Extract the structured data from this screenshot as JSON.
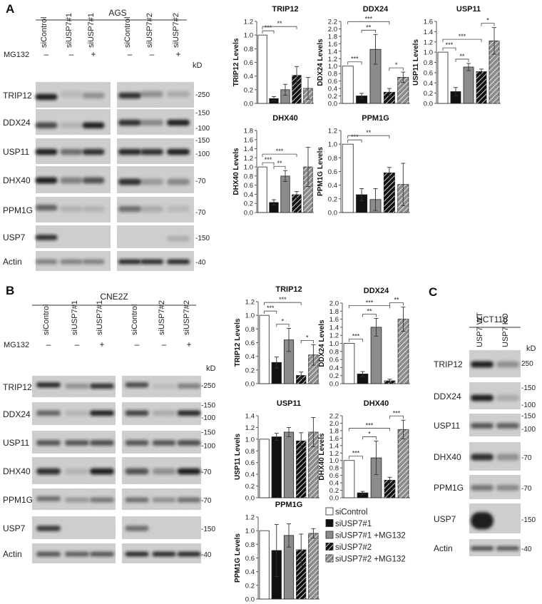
{
  "panels": [
    {
      "label": "A",
      "cell_line": "AGS",
      "kd_unit": "kD",
      "treatment_label": "MG132",
      "groups": [
        {
          "lanes": [
            "siControl",
            "siUSP7#1",
            "siUSP7#1"
          ],
          "mg132": [
            "–",
            "–",
            "+"
          ]
        },
        {
          "lanes": [
            "siControl",
            "siUSP7#2",
            "siUSP7#2"
          ],
          "mg132": [
            "–",
            "–",
            "+"
          ]
        }
      ],
      "proteins": [
        "TRIP12",
        "DDX24",
        "USP11",
        "DHX40",
        "PPM1G",
        "USP7",
        "Actin"
      ],
      "markers": [
        {
          "t": "-250",
          "row": 0,
          "f": 0.45
        },
        {
          "t": "-150",
          "row": 1,
          "f": 0.12
        },
        {
          "t": "-100",
          "row": 1,
          "f": 0.68
        },
        {
          "t": "-150",
          "row": 2,
          "f": 0.05
        },
        {
          "t": "-100",
          "row": 2,
          "f": 0.55
        },
        {
          "t": "-70",
          "row": 3,
          "f": 0.5
        },
        {
          "t": "-70",
          "row": 4,
          "f": 0.55
        },
        {
          "t": "-150",
          "row": 5,
          "f": 0.5
        },
        {
          "t": "-40",
          "row": 6,
          "f": 0.5
        }
      ]
    },
    {
      "label": "B",
      "cell_line": "CNE2Z",
      "kd_unit": "kD",
      "treatment_label": "MG132",
      "groups": [
        {
          "lanes": [
            "siControl",
            "siUSP7#1",
            "siUSP7#1"
          ],
          "mg132": [
            "–",
            "–",
            "+"
          ]
        },
        {
          "lanes": [
            "siControl",
            "siUSP7#2",
            "siUSP7#2"
          ],
          "mg132": [
            "–",
            "–",
            "+"
          ]
        }
      ],
      "proteins": [
        "TRIP12",
        "DDX24",
        "USP11",
        "DHX40",
        "PPM1G",
        "USP7",
        "Actin"
      ],
      "markers": [
        {
          "t": "-250",
          "row": 0,
          "f": 0.4
        },
        {
          "t": "-150",
          "row": 1,
          "f": 0.1
        },
        {
          "t": "-100",
          "row": 1,
          "f": 0.62
        },
        {
          "t": "-150",
          "row": 2,
          "f": 0.05
        },
        {
          "t": "-100",
          "row": 2,
          "f": 0.6
        },
        {
          "t": "-70",
          "row": 3,
          "f": 0.5
        },
        {
          "t": "-70",
          "row": 4,
          "f": 0.5
        },
        {
          "t": "-150",
          "row": 5,
          "f": 0.5
        },
        {
          "t": "-40",
          "row": 6,
          "f": 0.5
        }
      ]
    },
    {
      "label": "C",
      "cell_line": "HCT116",
      "kd_unit": "kD",
      "lanes": [
        "USP7 WT",
        "USP7 KO"
      ],
      "proteins": [
        "TRIP12",
        "DDX24",
        "USP11",
        "DHX40",
        "PPM1G",
        "USP7",
        "Actin"
      ],
      "markers": [
        {
          "t": "250",
          "row": 0,
          "f": 0.45
        },
        {
          "t": "-150",
          "row": 1,
          "f": 0.18
        },
        {
          "t": "-100",
          "row": 1,
          "f": 0.78
        },
        {
          "t": "-150",
          "row": 2,
          "f": 0.08
        },
        {
          "t": "-100",
          "row": 2,
          "f": 0.62
        },
        {
          "t": "-70",
          "row": 3,
          "f": 0.5
        },
        {
          "t": "-70",
          "row": 4,
          "f": 0.5
        },
        {
          "t": "-150",
          "row": 5,
          "f": 0.5
        },
        {
          "t": "-40",
          "row": 6,
          "f": 0.5
        }
      ]
    }
  ],
  "chart_data": [
    {
      "type": "bar",
      "panel": "A",
      "title": "TRIP12",
      "ylabel": "TRIP12 Levels",
      "ylim": [
        0,
        1.2
      ],
      "ticks": [
        "0.0",
        "0.2",
        "0.4",
        "0.6",
        "0.8",
        "1.0",
        "1.2"
      ],
      "categories": [
        "siControl",
        "siUSP7#1",
        "siUSP7#1 +MG132",
        "siUSP7#2",
        "siUSP7#2 +MG132"
      ],
      "values": [
        1.0,
        0.07,
        0.2,
        0.41,
        0.22
      ],
      "errors": [
        0,
        0.03,
        0.08,
        0.13,
        0.16
      ],
      "significance": [
        {
          "a": 0,
          "b": 1,
          "label": "***"
        },
        {
          "a": 0,
          "b": 3,
          "label": "**"
        }
      ]
    },
    {
      "type": "bar",
      "panel": "A",
      "title": "DDX24",
      "ylabel": "DDX24 Levels",
      "ylim": [
        0,
        2.2
      ],
      "ticks": [
        "0.0",
        "0.2",
        "0.4",
        "0.6",
        "0.8",
        "1.0",
        "1.2",
        "1.4",
        "1.6",
        "1.8",
        "2.0",
        "2.2"
      ],
      "categories": [
        "siControl",
        "siUSP7#1",
        "siUSP7#1 +MG132",
        "siUSP7#2",
        "siUSP7#2 +MG132"
      ],
      "values": [
        1.0,
        0.2,
        1.45,
        0.3,
        0.7
      ],
      "errors": [
        0,
        0.07,
        0.4,
        0.1,
        0.14
      ],
      "significance": [
        {
          "a": 0,
          "b": 1,
          "label": "***"
        },
        {
          "a": 1,
          "b": 2,
          "label": "**"
        },
        {
          "a": 0,
          "b": 3,
          "label": "***"
        },
        {
          "a": 3,
          "b": 4,
          "label": "*"
        }
      ]
    },
    {
      "type": "bar",
      "panel": "A",
      "title": "USP11",
      "ylabel": "USP11 Levels",
      "ylim": [
        0,
        1.6
      ],
      "ticks": [
        "0.0",
        "0.2",
        "0.4",
        "0.6",
        "0.8",
        "1.0",
        "1.2",
        "1.4",
        "1.6"
      ],
      "categories": [
        "siControl",
        "siUSP7#1",
        "siUSP7#1 +MG132",
        "siUSP7#2",
        "siUSP7#2 +MG132"
      ],
      "values": [
        1.0,
        0.23,
        0.71,
        0.62,
        1.22
      ],
      "errors": [
        0,
        0.08,
        0.07,
        0.05,
        0.26
      ],
      "significance": [
        {
          "a": 0,
          "b": 1,
          "label": "***"
        },
        {
          "a": 1,
          "b": 2,
          "label": "**"
        },
        {
          "a": 0,
          "b": 3,
          "label": "***"
        },
        {
          "a": 3,
          "b": 4,
          "label": "*"
        }
      ]
    },
    {
      "type": "bar",
      "panel": "A",
      "title": "DHX40",
      "ylabel": "DHX40 Levels",
      "ylim": [
        0,
        1.8
      ],
      "ticks": [
        "0.0",
        "0.2",
        "0.4",
        "0.6",
        "0.8",
        "1.0",
        "1.2",
        "1.4",
        "1.6",
        "1.8"
      ],
      "categories": [
        "siControl",
        "siUSP7#1",
        "siUSP7#1 +MG132",
        "siUSP7#2",
        "siUSP7#2 +MG132"
      ],
      "values": [
        1.0,
        0.22,
        0.8,
        0.39,
        1.0
      ],
      "errors": [
        0,
        0.06,
        0.12,
        0.07,
        0.43
      ],
      "significance": [
        {
          "a": 0,
          "b": 1,
          "label": "***"
        },
        {
          "a": 1,
          "b": 2,
          "label": "**"
        },
        {
          "a": 0,
          "b": 3,
          "label": "***"
        }
      ]
    },
    {
      "type": "bar",
      "panel": "A",
      "title": "PPM1G",
      "ylabel": "PPM1G Levels",
      "ylim": [
        0,
        1.2
      ],
      "ticks": [
        "0.0",
        "0.2",
        "0.4",
        "0.6",
        "0.8",
        "1.0",
        "1.2"
      ],
      "categories": [
        "siControl",
        "siUSP7#1",
        "siUSP7#1 +MG132",
        "siUSP7#2",
        "siUSP7#2 +MG132"
      ],
      "values": [
        1.0,
        0.26,
        0.19,
        0.58,
        0.41
      ],
      "errors": [
        0,
        0.09,
        0.16,
        0.08,
        0.31
      ],
      "significance": [
        {
          "a": 0,
          "b": 1,
          "label": "***"
        },
        {
          "a": 0,
          "b": 3,
          "label": "**"
        }
      ]
    },
    {
      "type": "bar",
      "panel": "B",
      "title": "TRIP12",
      "ylabel": "TRIP12 Levels",
      "ylim": [
        0,
        1.2
      ],
      "ticks": [
        "0.0",
        "0.2",
        "0.4",
        "0.6",
        "0.8",
        "1.0",
        "1.2"
      ],
      "categories": [
        "siControl",
        "siUSP7#1",
        "siUSP7#1 +MG132",
        "siUSP7#2",
        "siUSP7#2 +MG132"
      ],
      "values": [
        1.0,
        0.31,
        0.64,
        0.12,
        0.42
      ],
      "errors": [
        0,
        0.08,
        0.17,
        0.05,
        0.15
      ],
      "significance": [
        {
          "a": 0,
          "b": 1,
          "label": "***"
        },
        {
          "a": 1,
          "b": 2,
          "label": "*"
        },
        {
          "a": 0,
          "b": 3,
          "label": "***"
        },
        {
          "a": 3,
          "b": 4,
          "label": "*"
        }
      ]
    },
    {
      "type": "bar",
      "panel": "B",
      "title": "DDX24",
      "ylabel": "DDX24 Levels",
      "ylim": [
        0,
        2.0
      ],
      "ticks": [
        "0.0",
        "0.2",
        "0.4",
        "0.6",
        "0.8",
        "1.0",
        "1.2",
        "1.4",
        "1.6",
        "1.8",
        "2.0"
      ],
      "categories": [
        "siControl",
        "siUSP7#1",
        "siUSP7#1 +MG132",
        "siUSP7#2",
        "siUSP7#2 +MG132"
      ],
      "values": [
        1.0,
        0.24,
        1.4,
        0.07,
        1.6
      ],
      "errors": [
        0,
        0.06,
        0.22,
        0.04,
        0.3
      ],
      "significance": [
        {
          "a": 0,
          "b": 1,
          "label": "***"
        },
        {
          "a": 1,
          "b": 2,
          "label": "**"
        },
        {
          "a": 0,
          "b": 3,
          "label": "***"
        },
        {
          "a": 3,
          "b": 4,
          "label": "**"
        }
      ]
    },
    {
      "type": "bar",
      "panel": "B",
      "title": "USP11",
      "ylabel": "USP11 Levels",
      "ylim": [
        0,
        1.4
      ],
      "ticks": [
        "0.0",
        "0.2",
        "0.4",
        "0.6",
        "0.8",
        "1.0",
        "1.2",
        "1.4"
      ],
      "categories": [
        "siControl",
        "siUSP7#1",
        "siUSP7#1 +MG132",
        "siUSP7#2",
        "siUSP7#2 +MG132"
      ],
      "values": [
        1.0,
        1.04,
        1.12,
        0.97,
        1.12
      ],
      "errors": [
        0,
        0.06,
        0.08,
        0.14,
        0.25
      ],
      "significance": []
    },
    {
      "type": "bar",
      "panel": "B",
      "title": "DHX40",
      "ylabel": "DHX40 Levels",
      "ylim": [
        0,
        2.2
      ],
      "ticks": [
        "0.0",
        "0.2",
        "0.4",
        "0.6",
        "0.8",
        "1.0",
        "1.2",
        "1.4",
        "1.6",
        "1.8",
        "2.0",
        "2.2"
      ],
      "categories": [
        "siControl",
        "siUSP7#1",
        "siUSP7#1 +MG132",
        "siUSP7#2",
        "siUSP7#2 +MG132"
      ],
      "values": [
        1.0,
        0.13,
        1.07,
        0.47,
        1.83
      ],
      "errors": [
        0,
        0.04,
        0.45,
        0.08,
        0.25
      ],
      "significance": [
        {
          "a": 0,
          "b": 1,
          "label": "***"
        },
        {
          "a": 1,
          "b": 2,
          "label": "*"
        },
        {
          "a": 0,
          "b": 3,
          "label": "***"
        },
        {
          "a": 3,
          "b": 4,
          "label": "***"
        }
      ]
    },
    {
      "type": "bar",
      "panel": "B",
      "title": "PPM1G",
      "ylabel": "PPM1G Levels",
      "ylim": [
        0,
        1.2
      ],
      "ticks": [
        "0.0",
        "0.2",
        "0.4",
        "0.6",
        "0.8",
        "1.0",
        "1.2"
      ],
      "categories": [
        "siControl",
        "siUSP7#1",
        "siUSP7#1 +MG132",
        "siUSP7#2",
        "siUSP7#2 +MG132"
      ],
      "values": [
        1.0,
        0.71,
        0.93,
        0.72,
        0.96
      ],
      "errors": [
        0,
        0.38,
        0.17,
        0.23,
        0.07
      ],
      "significance": []
    }
  ],
  "legend": {
    "items": [
      "siControl",
      "siUSP7#1",
      "siUSP7#1 +MG132",
      "siUSP7#2",
      "siUSP7#2 +MG132"
    ]
  },
  "colors": {
    "control": "#ffffff",
    "usp7_1": "#111111",
    "usp7_1_mg132": "#8c8c8c",
    "usp7_2": "#111111",
    "usp7_2_mg132": "#8c8c8c",
    "hatch_line": "#ffffff",
    "blot_bg": "#cfcfcf",
    "band": "#141414"
  }
}
